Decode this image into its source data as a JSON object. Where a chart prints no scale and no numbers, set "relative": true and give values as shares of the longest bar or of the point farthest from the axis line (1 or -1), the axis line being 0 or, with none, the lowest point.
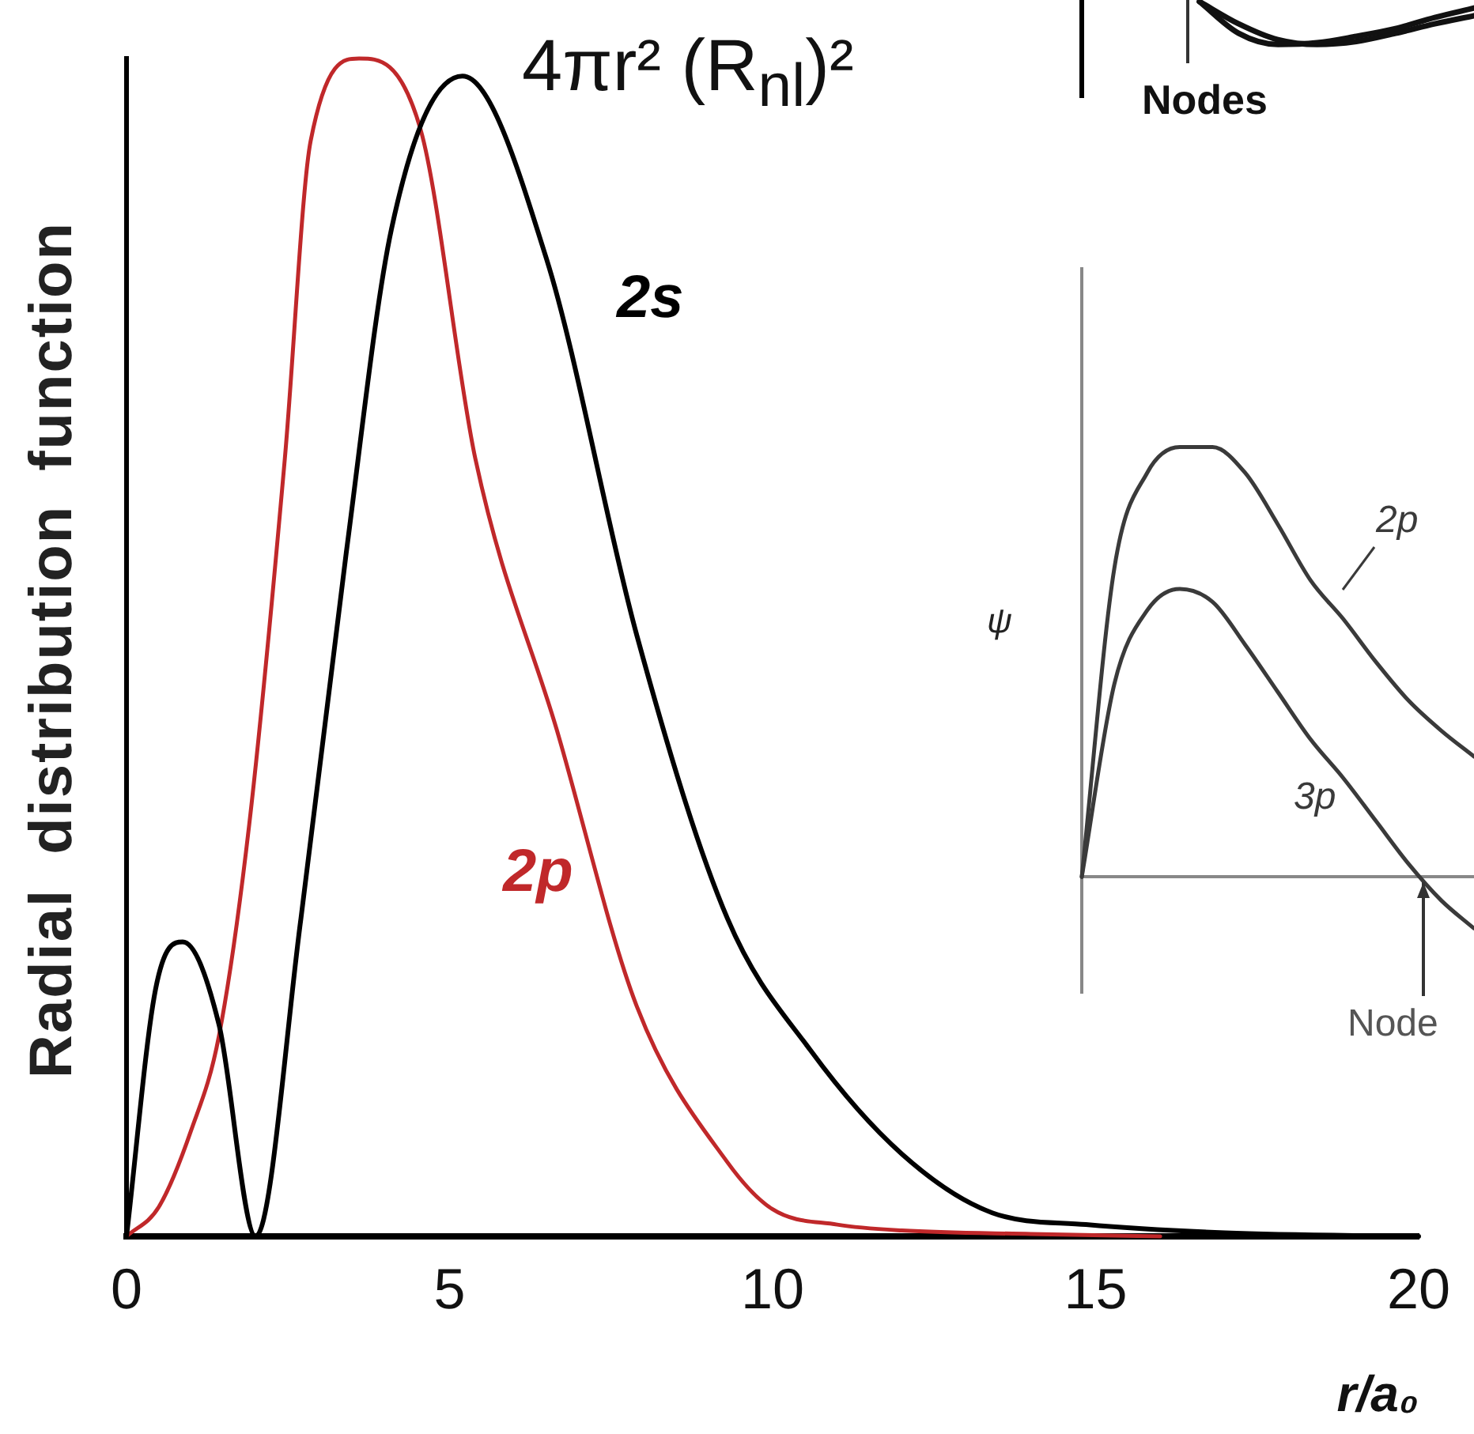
{
  "chart_data": [
    {
      "type": "line",
      "title": "4πr² (R$_{nl}$)²",
      "xlabel": "r/a₀",
      "ylabel": "Radial distribution function",
      "relative": true,
      "xlim": [
        0,
        20
      ],
      "xticks": [
        0,
        5,
        10,
        15,
        20
      ],
      "series": [
        {
          "name": "2s",
          "color": "#000000",
          "x": [
            0,
            0.45,
            0.87,
            1.43,
            2.0,
            2.7,
            3.4,
            4.1,
            5.2,
            6.5,
            7.9,
            9.3,
            10.6,
            12.0,
            13.4,
            14.85,
            17,
            20
          ],
          "values": [
            0,
            0.21,
            0.25,
            0.18,
            0,
            0.27,
            0.58,
            0.855,
            0.985,
            0.83,
            0.51,
            0.27,
            0.157,
            0.07,
            0.02,
            0.01,
            0.003,
            0
          ]
        },
        {
          "name": "2p",
          "color": "#c0282a",
          "x": [
            0,
            0.5,
            1.0,
            1.43,
            1.9,
            2.45,
            2.85,
            3.6,
            4.55,
            5.4,
            6.66,
            7.9,
            9.3,
            10,
            11,
            12,
            14,
            16
          ],
          "values": [
            0,
            0.025,
            0.09,
            0.17,
            0.35,
            0.66,
            0.93,
            1,
            0.94,
            0.66,
            0.43,
            0.195,
            0.063,
            0.023,
            0.01,
            0.005,
            0.002,
            0
          ]
        }
      ]
    },
    {
      "type": "line",
      "ylabel": "ψ",
      "relative": true,
      "tick_labels": false,
      "annotations": [
        "Node"
      ],
      "categories": [
        null,
        null,
        null,
        null,
        null,
        null,
        null,
        null,
        null,
        null,
        null,
        null,
        null
      ],
      "series": [
        {
          "name": "2p",
          "color": "#3a3a3a",
          "values": [
            0,
            0.72,
            0.94,
            1.0,
            1.0,
            0.94,
            0.82,
            0.69,
            0.6,
            0.5,
            0.41,
            0.34,
            0.28
          ]
        },
        {
          "name": "3p",
          "color": "#3a3a3a",
          "values": [
            0,
            0.45,
            0.62,
            0.67,
            0.64,
            0.54,
            0.43,
            0.32,
            0.23,
            0.13,
            0.03,
            -0.055,
            -0.12
          ]
        }
      ]
    },
    {
      "type": "line",
      "relative": true,
      "tick_labels": false,
      "annotations": [
        "Nodes"
      ],
      "categories": [
        null,
        null,
        null,
        null,
        null,
        null,
        null,
        null,
        null,
        null,
        null
      ],
      "series": [
        {
          "color": "#111111",
          "values": [
            null,
            null,
            null,
            1,
            0.26,
            0,
            0.04,
            0.19,
            0.37,
            0.63,
            0.85
          ]
        },
        {
          "color": "#111111",
          "values": [
            null,
            null,
            null,
            1,
            0.48,
            0.11,
            0,
            0.07,
            0.26,
            0.48,
            0.67
          ]
        }
      ]
    }
  ]
}
